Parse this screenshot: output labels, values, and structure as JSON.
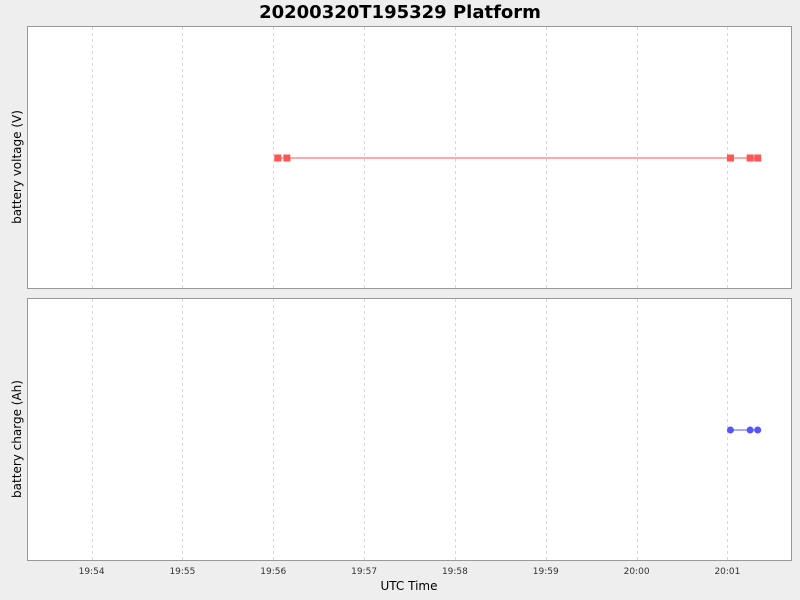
{
  "chart_data": {
    "title": "20200320T195329 Platform",
    "xlabel": "UTC Time",
    "x_ticks": [
      "19:54",
      "19:55",
      "19:56",
      "19:57",
      "19:58",
      "19:59",
      "20:00",
      "20:01"
    ],
    "x_range": [
      "19:53:18",
      "20:01:42"
    ],
    "grid": true,
    "panels": [
      {
        "type": "line",
        "ylabel": "battery voltage (V)",
        "color": "#ff5555",
        "marker": "square",
        "series": [
          {
            "x": [
              "19:56:03",
              "19:56:09",
              "20:01:02",
              "20:01:15",
              "20:01:20"
            ],
            "y": [
              1,
              1,
              1,
              1,
              1
            ]
          }
        ]
      },
      {
        "type": "line",
        "ylabel": "battery charge (Ah)",
        "color": "#5555ff",
        "marker": "circle",
        "series": [
          {
            "x": [
              "20:01:02",
              "20:01:15",
              "20:01:20"
            ],
            "y": [
              1,
              1,
              1
            ]
          }
        ]
      }
    ]
  }
}
